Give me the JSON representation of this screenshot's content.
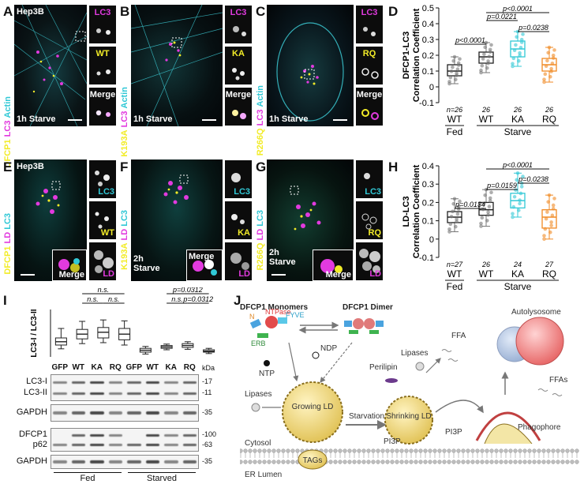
{
  "panels": {
    "A": {
      "letter": "A",
      "cell": "Hep3B",
      "condition": "1h Starve",
      "c1": "DFCP1",
      "c2": "LC3",
      "c3": "Actin",
      "insets": [
        "LC3",
        "WT",
        "Merge"
      ]
    },
    "B": {
      "letter": "B",
      "c1": "K193A",
      "c2": "LC3",
      "c3": "Actin",
      "condition": "1h Starve",
      "insets": [
        "LC3",
        "KA",
        "Merge"
      ]
    },
    "C": {
      "letter": "C",
      "c1": "R266Q",
      "c2": "LC3",
      "c3": "Actin",
      "condition": "1h Starve",
      "insets": [
        "LC3",
        "RQ",
        "Merge"
      ]
    },
    "E": {
      "letter": "E",
      "cell": "Hep3B",
      "c1": "DFCP1",
      "c2": "LD",
      "c3": "LC3",
      "condition_l1": "2h",
      "condition_l2": "Starve",
      "insets": [
        "LC3",
        "WT",
        "Merge",
        "LD"
      ]
    },
    "F": {
      "letter": "F",
      "c1": "K193A",
      "c2": "LD",
      "c3": "LC3",
      "condition_l1": "2h",
      "condition_l2": "Starve",
      "insets": [
        "LC3",
        "KA",
        "Merge",
        "LD"
      ]
    },
    "G": {
      "letter": "G",
      "c1": "R266Q",
      "c2": "LD",
      "c3": "LC3",
      "condition_l1": "2h",
      "condition_l2": "Starve",
      "insets": [
        "LC3",
        "RQ",
        "Merge",
        "LD"
      ]
    },
    "I": {
      "letter": "I"
    },
    "J": {
      "letter": "J"
    }
  },
  "colors": {
    "yellow": "#f2ec28",
    "magenta": "#e23adf",
    "cyan": "#31c8d6",
    "orange": "#f08a24",
    "gray": "#777777"
  },
  "chart_data": [
    {
      "id": "D",
      "type": "box",
      "ylabel": "DFCP1-LC3\nCorrelation Coefficient",
      "ylim": [
        -0.1,
        0.5
      ],
      "yticks": [
        "-0.1",
        "0",
        "0.1",
        "0.2",
        "0.3",
        "0.4",
        "0.5"
      ],
      "categories": [
        "WT",
        "WT",
        "KA",
        "RQ"
      ],
      "groups": [
        {
          "label": "Fed",
          "span": [
            0,
            0
          ]
        },
        {
          "label": "Starve",
          "span": [
            1,
            3
          ]
        }
      ],
      "n_labels": [
        "n=26",
        "26",
        "26",
        "26"
      ],
      "series": [
        {
          "q1": 0.07,
          "median": 0.1,
          "q3": 0.14,
          "min": 0.02,
          "max": 0.19,
          "color": "#777777"
        },
        {
          "q1": 0.15,
          "median": 0.19,
          "q3": 0.22,
          "min": 0.09,
          "max": 0.28,
          "color": "#777777"
        },
        {
          "q1": 0.19,
          "median": 0.24,
          "q3": 0.29,
          "min": 0.13,
          "max": 0.35,
          "color": "#31c8d6"
        },
        {
          "q1": 0.1,
          "median": 0.14,
          "q3": 0.18,
          "min": 0.03,
          "max": 0.25,
          "color": "#f08a24"
        }
      ],
      "comparisons": [
        {
          "a": 0,
          "b": 1,
          "label": "p<0.0001"
        },
        {
          "a": 1,
          "b": 2,
          "label": "p=0.0221"
        },
        {
          "a": 1,
          "b": 3,
          "label": "p<0.0001"
        },
        {
          "a": 2,
          "b": 3,
          "label": "p=0.0238"
        }
      ]
    },
    {
      "id": "H",
      "type": "box",
      "ylabel": "LD-LC3\nCorrelation Coefficient",
      "ylim": [
        -0.1,
        0.4
      ],
      "yticks": [
        "-0.1",
        "0",
        "0.1",
        "0.2",
        "0.3",
        "0.4"
      ],
      "categories": [
        "WT",
        "WT",
        "KA",
        "RQ"
      ],
      "groups": [
        {
          "label": "Fed",
          "span": [
            0,
            0
          ]
        },
        {
          "label": "Starve",
          "span": [
            1,
            3
          ]
        }
      ],
      "n_labels": [
        "n=27",
        "26",
        "24",
        "27"
      ],
      "series": [
        {
          "q1": 0.09,
          "median": 0.12,
          "q3": 0.15,
          "min": 0.04,
          "max": 0.22,
          "color": "#777777"
        },
        {
          "q1": 0.13,
          "median": 0.16,
          "q3": 0.2,
          "min": 0.07,
          "max": 0.27,
          "color": "#777777"
        },
        {
          "q1": 0.17,
          "median": 0.21,
          "q3": 0.25,
          "min": 0.12,
          "max": 0.36,
          "color": "#31c8d6"
        },
        {
          "q1": 0.06,
          "median": 0.12,
          "q3": 0.16,
          "min": 0.0,
          "max": 0.24,
          "color": "#f08a24"
        }
      ],
      "comparisons": [
        {
          "a": 0,
          "b": 1,
          "label": "p=0.0134"
        },
        {
          "a": 1,
          "b": 2,
          "label": "p=0.0159"
        },
        {
          "a": 1,
          "b": 3,
          "label": "p<0.0001"
        },
        {
          "a": 2,
          "b": 3,
          "label": "p=0.0238"
        }
      ]
    },
    {
      "id": "I",
      "type": "box",
      "ylabel": "LC3-I / LC3-II",
      "ylim": [
        0,
        1
      ],
      "categories": [
        "GFP",
        "WT",
        "KA",
        "RQ",
        "GFP",
        "WT",
        "KA",
        "RQ"
      ],
      "series": [
        {
          "q1": 0.25,
          "median": 0.32,
          "q3": 0.4,
          "min": 0.17,
          "max": 0.6
        },
        {
          "q1": 0.38,
          "median": 0.48,
          "q3": 0.58,
          "min": 0.28,
          "max": 0.75
        },
        {
          "q1": 0.4,
          "median": 0.52,
          "q3": 0.62,
          "min": 0.3,
          "max": 0.78
        },
        {
          "q1": 0.36,
          "median": 0.48,
          "q3": 0.6,
          "min": 0.25,
          "max": 0.76
        },
        {
          "q1": 0.1,
          "median": 0.14,
          "q3": 0.18,
          "min": 0.06,
          "max": 0.22
        },
        {
          "q1": 0.18,
          "median": 0.21,
          "q3": 0.24,
          "min": 0.15,
          "max": 0.27
        },
        {
          "q1": 0.2,
          "median": 0.24,
          "q3": 0.28,
          "min": 0.16,
          "max": 0.32
        },
        {
          "q1": 0.1,
          "median": 0.12,
          "q3": 0.15,
          "min": 0.07,
          "max": 0.18
        }
      ],
      "comparisons": [
        {
          "a": 1,
          "b": 3,
          "label": "n.s.",
          "level": 2
        },
        {
          "a": 1,
          "b": 2,
          "label": "n.s.",
          "level": 1
        },
        {
          "a": 2,
          "b": 3,
          "label": "n.s.",
          "level": 1
        },
        {
          "a": 5,
          "b": 7,
          "label": "p=0.0312",
          "level": 2
        },
        {
          "a": 5,
          "b": 6,
          "label": "n.s.",
          "level": 1
        },
        {
          "a": 6,
          "b": 7,
          "label": "p=0.0312",
          "level": 1
        }
      ],
      "blots": [
        {
          "labels": [
            "LC3-I",
            "LC3-II"
          ],
          "kda": [
            "17",
            "11"
          ]
        },
        {
          "labels": [
            "GAPDH"
          ],
          "kda": [
            "35"
          ]
        },
        {
          "labels": [
            "DFCP1",
            "p62"
          ],
          "kda": [
            "100",
            "63"
          ]
        },
        {
          "labels": [
            "GAPDH"
          ],
          "kda": [
            "35"
          ]
        }
      ],
      "kda_unit": "kDa",
      "groups": [
        {
          "label": "Fed"
        },
        {
          "label": "Starved"
        }
      ]
    }
  ],
  "schematic": {
    "monomers": "DFCP1 Monomers",
    "dimer": "DFCP1 Dimer",
    "ntpase": "NTPase",
    "n": "N",
    "fyve": "FYVE",
    "erb": "ERB",
    "ntp": "NTP",
    "ndp": "NDP",
    "lipases_left": "Lipases",
    "lipases_mid": "Lipases",
    "perilipin": "Perilipin",
    "ffa": "FFA",
    "ffas": "FFAs",
    "autolysosome": "Autolysosome",
    "phagophore": "Phagophore",
    "growing": "Growing\nLD",
    "shrinking": "Shrinking\nLD",
    "starvation": "Starvation",
    "pi3p_1": "PI3P",
    "pi3p_2": "PI3P",
    "cytosol": "Cytosol",
    "er_lumen": "ER Lumen",
    "tags": "TAGs"
  }
}
